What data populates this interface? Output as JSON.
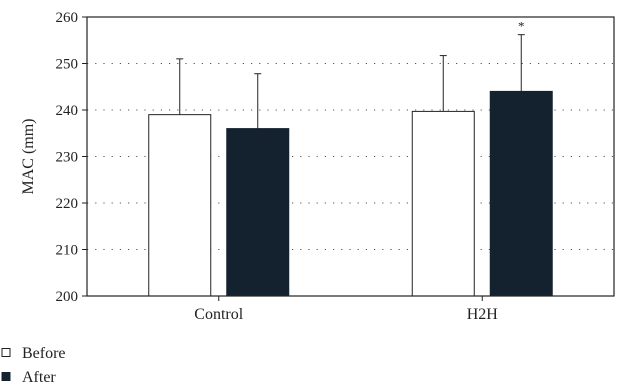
{
  "chart_data": {
    "type": "bar",
    "categories": [
      "Control",
      "H2H"
    ],
    "series": [
      {
        "name": "Before",
        "values": [
          239,
          239.7
        ],
        "errors": [
          12,
          12
        ],
        "color": "#ffffff",
        "stroke": "#222222"
      },
      {
        "name": "After",
        "values": [
          236,
          244
        ],
        "errors": [
          11.8,
          12.2
        ],
        "color": "#14222f",
        "stroke": "#14222f"
      }
    ],
    "annotations": [
      {
        "series": 1,
        "category": 1,
        "text": "*"
      }
    ],
    "xlabel": "",
    "ylabel": "MAC (mm)",
    "ylim": [
      200,
      260
    ],
    "yticks": [
      200,
      210,
      220,
      230,
      240,
      250,
      260
    ],
    "grid": "horizontal dotted",
    "legend_position": "bottom-left"
  }
}
